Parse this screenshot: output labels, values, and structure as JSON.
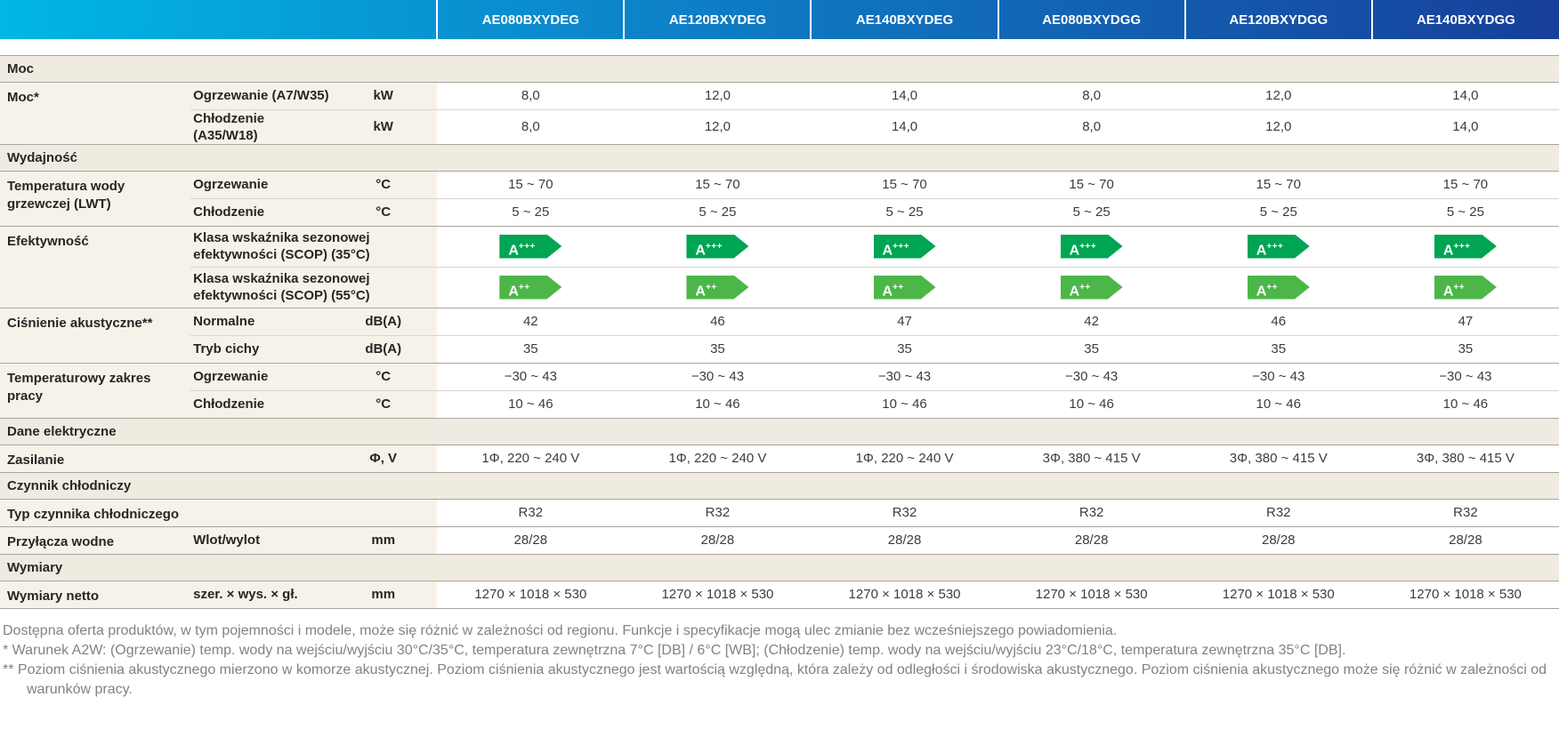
{
  "colors": {
    "header_gradient_start": "#00b7e6",
    "header_gradient_mid": "#0e7ec6",
    "header_gradient_end": "#173f9a",
    "section_background": "#f0ebe1",
    "label_background": "#f7f2e9",
    "line_strong": "#a9a49c",
    "line_light": "#d9d5cd",
    "badge_green_dark": "#00a553",
    "badge_green_light": "#4cb748",
    "footnote_gray": "#828282"
  },
  "models": [
    "AE080BXYDEG",
    "AE120BXYDEG",
    "AE140BXYDEG",
    "AE080BXYDGG",
    "AE120BXYDGG",
    "AE140BXYDGG"
  ],
  "rows": [
    {
      "type": "section",
      "label": "Moc"
    },
    {
      "type": "data",
      "label": "Moc*",
      "sub": "Ogrzewanie (A7/W35)",
      "unit": "kW",
      "values": [
        "8,0",
        "12,0",
        "14,0",
        "8,0",
        "12,0",
        "14,0"
      ]
    },
    {
      "type": "data",
      "sub": "Chłodzenie (A35/W18)",
      "unit": "kW",
      "values": [
        "8,0",
        "12,0",
        "14,0",
        "8,0",
        "12,0",
        "14,0"
      ]
    },
    {
      "type": "section",
      "label": "Wydajność"
    },
    {
      "type": "data",
      "label": "Temperatura wody grzewczej (LWT)",
      "sub": "Ogrzewanie",
      "unit": "°C",
      "values": [
        "15 ~ 70",
        "15 ~ 70",
        "15 ~ 70",
        "15 ~ 70",
        "15 ~ 70",
        "15 ~ 70"
      ]
    },
    {
      "type": "data",
      "sub": "Chłodzenie",
      "unit": "°C",
      "values": [
        "5 ~ 25",
        "5 ~ 25",
        "5 ~ 25",
        "5 ~ 25",
        "5 ~ 25",
        "5 ~ 25"
      ]
    },
    {
      "type": "data",
      "label": "Efektywność",
      "sub": "Klasa wskaźnika sezonowej efektywności (SCOP) (35°C)",
      "badge": {
        "letter": "A",
        "plus": "+++"
      }
    },
    {
      "type": "data",
      "sub": "Klasa wskaźnika sezonowej efektywności (SCOP) (55°C)",
      "badge": {
        "letter": "A",
        "plus": "++"
      }
    },
    {
      "type": "data",
      "label": "Ciśnienie akustyczne**",
      "sub": "Normalne",
      "unit": "dB(A)",
      "values": [
        "42",
        "46",
        "47",
        "42",
        "46",
        "47"
      ]
    },
    {
      "type": "data",
      "sub": "Tryb cichy",
      "unit": "dB(A)",
      "values": [
        "35",
        "35",
        "35",
        "35",
        "35",
        "35"
      ]
    },
    {
      "type": "data",
      "label": "Temperaturowy zakres pracy",
      "sub": "Ogrzewanie",
      "unit": "°C",
      "values": [
        "−30 ~ 43",
        "−30 ~ 43",
        "−30 ~ 43",
        "−30 ~ 43",
        "−30 ~ 43",
        "−30 ~ 43"
      ]
    },
    {
      "type": "data",
      "sub": "Chłodzenie",
      "unit": "°C",
      "values": [
        "10 ~ 46",
        "10 ~ 46",
        "10 ~ 46",
        "10 ~ 46",
        "10 ~ 46",
        "10 ~ 46"
      ]
    },
    {
      "type": "section",
      "label": "Dane elektryczne"
    },
    {
      "type": "data",
      "label": "Zasilanie",
      "sub": "",
      "unit": "Φ, V",
      "values": [
        "1Φ, 220 ~ 240 V",
        "1Φ, 220 ~ 240 V",
        "1Φ, 220 ~ 240 V",
        "3Φ, 380 ~ 415 V",
        "3Φ, 380 ~ 415 V",
        "3Φ, 380 ~ 415 V"
      ]
    },
    {
      "type": "section",
      "label": "Czynnik chłodniczy"
    },
    {
      "type": "data",
      "label": "Typ czynnika chłodniczego",
      "sub": "",
      "unit": "",
      "values": [
        "R32",
        "R32",
        "R32",
        "R32",
        "R32",
        "R32"
      ]
    },
    {
      "type": "data",
      "label": "Przyłącza wodne",
      "sub": "Wlot/wylot",
      "unit": "mm",
      "values": [
        "28/28",
        "28/28",
        "28/28",
        "28/28",
        "28/28",
        "28/28"
      ]
    },
    {
      "type": "section",
      "label": "Wymiary"
    },
    {
      "type": "data",
      "label": "Wymiary netto",
      "sub": "szer. × wys. × gł.",
      "unit": "mm",
      "values": [
        "1270 × 1018 × 530",
        "1270 × 1018 × 530",
        "1270 × 1018 × 530",
        "1270 × 1018 × 530",
        "1270 × 1018 × 530",
        "1270 × 1018 × 530"
      ]
    }
  ],
  "footnotes": [
    "Dostępna oferta produktów, w tym pojemności i modele, może się różnić w zależności od regionu. Funkcje i specyfikacje mogą ulec zmianie bez wcześniejszego powiadomienia.",
    "* Warunek A2W: (Ogrzewanie) temp. wody na wejściu/wyjściu 30°C/35°C, temperatura zewnętrzna 7°C [DB] / 6°C [WB]; (Chłodzenie) temp. wody na wejściu/wyjściu 23°C/18°C, temperatura zewnętrzna 35°C [DB].",
    "** Poziom ciśnienia akustycznego mierzono w komorze akustycznej. Poziom ciśnienia akustycznego jest wartością względną, która zależy od odległości i środowiska akustycznego. Poziom ciśnienia akustycznego może się różnić w zależności od warunków pracy."
  ]
}
